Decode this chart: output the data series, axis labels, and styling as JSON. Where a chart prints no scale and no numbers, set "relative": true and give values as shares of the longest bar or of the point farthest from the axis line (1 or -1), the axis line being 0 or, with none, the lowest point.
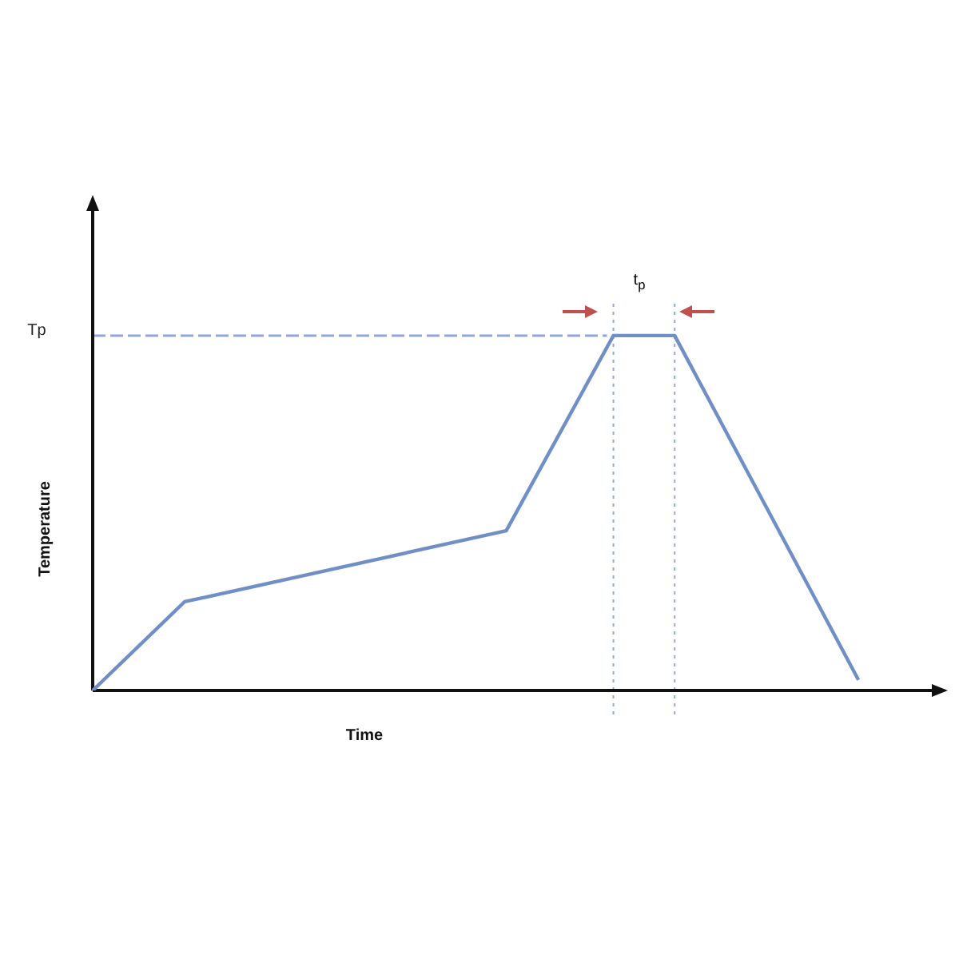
{
  "chart_data": {
    "type": "line",
    "relative": true,
    "xlabel": "Time",
    "ylabel": "Temperature",
    "categories": [
      null,
      null,
      null,
      null,
      null,
      null,
      null,
      null,
      null,
      null,
      null,
      null,
      null,
      null,
      null,
      null,
      null,
      null,
      null,
      null,
      null,
      null,
      null,
      null,
      null,
      null,
      null,
      null,
      null,
      null,
      null,
      null,
      null,
      null,
      null,
      null,
      null,
      null,
      null,
      null,
      null,
      null,
      null,
      null,
      null,
      null,
      null,
      null,
      null,
      null,
      null,
      null,
      null,
      null,
      null,
      null
    ],
    "series": [
      {
        "color": "#6f8fc6",
        "values": [
          0,
          null,
          null,
          null,
          null,
          null,
          0.25,
          null,
          null,
          null,
          null,
          null,
          null,
          null,
          null,
          null,
          null,
          null,
          null,
          null,
          null,
          null,
          null,
          null,
          null,
          null,
          null,
          0.45,
          null,
          null,
          null,
          null,
          null,
          null,
          1,
          null,
          null,
          null,
          1,
          null,
          null,
          null,
          null,
          null,
          null,
          null,
          null,
          null,
          null,
          null,
          0.03,
          null,
          null,
          null,
          null,
          null
        ]
      }
    ],
    "ref_lines": [
      {
        "axis": "y",
        "value": 1,
        "label": "Tp",
        "color": "#8fa8dc",
        "line_style": "dashed"
      }
    ],
    "annotations": [
      "t$_{p}$"
    ],
    "legend": false,
    "marker": "none",
    "line_style": "solid"
  }
}
